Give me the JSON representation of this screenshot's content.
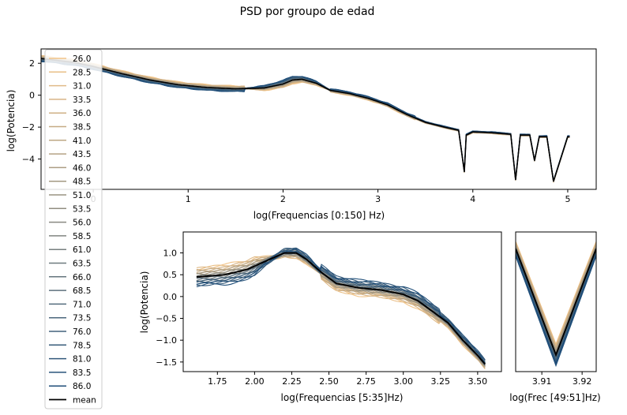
{
  "figure_title": "PSD por groupo de edad",
  "legend_labels": [
    "26.0",
    "28.5",
    "31.0",
    "33.5",
    "36.0",
    "38.5",
    "41.0",
    "43.5",
    "46.0",
    "48.5",
    "51.0",
    "53.5",
    "56.0",
    "58.5",
    "61.0",
    "63.5",
    "66.0",
    "68.5",
    "71.0",
    "73.5",
    "76.0",
    "78.5",
    "81.0",
    "83.5",
    "86.0",
    "mean"
  ],
  "colors": {
    "young": "#f2c488",
    "old": "#1f4e79",
    "mean": "#000000"
  },
  "chart_data": [
    {
      "type": "line",
      "xlabel": "log(Frequencias  [0:150] Hz)",
      "ylabel": "log(Potencia)",
      "xlim": [
        -0.55,
        5.3
      ],
      "ylim": [
        -5.9,
        2.9
      ],
      "xticks": [
        0,
        1,
        2,
        3,
        4,
        5
      ],
      "yticks": [
        2,
        0,
        -2,
        -4
      ],
      "ytick_labels": [
        "2",
        "0",
        "−2",
        "−4"
      ],
      "mean_curve": {
        "x": [
          -0.55,
          -0.2,
          0,
          0.3,
          0.6,
          0.9,
          1.2,
          1.5,
          1.8,
          2.0,
          2.1,
          2.2,
          2.35,
          2.5,
          2.7,
          2.9,
          3.1,
          3.3,
          3.5,
          3.7,
          3.85,
          3.91,
          3.93,
          4.0,
          4.2,
          4.4,
          4.45,
          4.5,
          4.6,
          4.65,
          4.7,
          4.78,
          4.85,
          5.0
        ],
        "y": [
          2.3,
          2.05,
          1.8,
          1.35,
          0.95,
          0.65,
          0.48,
          0.4,
          0.45,
          0.7,
          0.95,
          1.0,
          0.75,
          0.3,
          0.1,
          -0.2,
          -0.6,
          -1.2,
          -1.7,
          -2.0,
          -2.2,
          -4.8,
          -2.5,
          -2.3,
          -2.35,
          -2.45,
          -5.3,
          -2.5,
          -2.5,
          -4.1,
          -2.6,
          -2.6,
          -5.4,
          -2.6
        ]
      },
      "young_offset": [
        0.35,
        -0.25
      ],
      "old_offset": [
        -0.2,
        0.35
      ],
      "series_count": 25
    },
    {
      "type": "line",
      "xlabel": "log(Frequencias [5:35]Hz)",
      "ylabel": "log(Potencia)",
      "xlim": [
        1.52,
        3.66
      ],
      "ylim": [
        -1.72,
        1.48
      ],
      "xticks": [
        1.75,
        2.0,
        2.25,
        2.5,
        2.75,
        3.0,
        3.25,
        3.5
      ],
      "xtick_labels": [
        "1.75",
        "2.00",
        "2.25",
        "2.50",
        "2.75",
        "3.00",
        "3.25",
        "3.50"
      ],
      "yticks": [
        1.0,
        0.5,
        0.0,
        -0.5,
        -1.0,
        -1.5
      ],
      "ytick_labels": [
        "1.0",
        "0.5",
        "0.0",
        "−0.5",
        "−1.0",
        "−1.5"
      ],
      "mean_curve": {
        "x": [
          1.61,
          1.8,
          1.95,
          2.1,
          2.2,
          2.28,
          2.35,
          2.45,
          2.55,
          2.7,
          2.85,
          3.0,
          3.1,
          3.2,
          3.3,
          3.4,
          3.5,
          3.55
        ],
        "y": [
          0.45,
          0.5,
          0.62,
          0.85,
          1.0,
          1.0,
          0.85,
          0.55,
          0.3,
          0.2,
          0.15,
          0.05,
          -0.1,
          -0.35,
          -0.6,
          -1.0,
          -1.35,
          -1.55
        ]
      }
    },
    {
      "type": "line",
      "xlabel": "log(Frec [49:51]Hz)",
      "xlim": [
        3.9035,
        3.9235
      ],
      "xticks": [
        3.91,
        3.92
      ],
      "xtick_labels": [
        "3.91",
        "3.92"
      ],
      "mean_curve": {
        "x": [
          3.9035,
          3.9135,
          3.9235
        ],
        "y": [
          1.0,
          0.05,
          1.0
        ]
      },
      "ylim": [
        -0.1,
        1.15
      ]
    }
  ]
}
